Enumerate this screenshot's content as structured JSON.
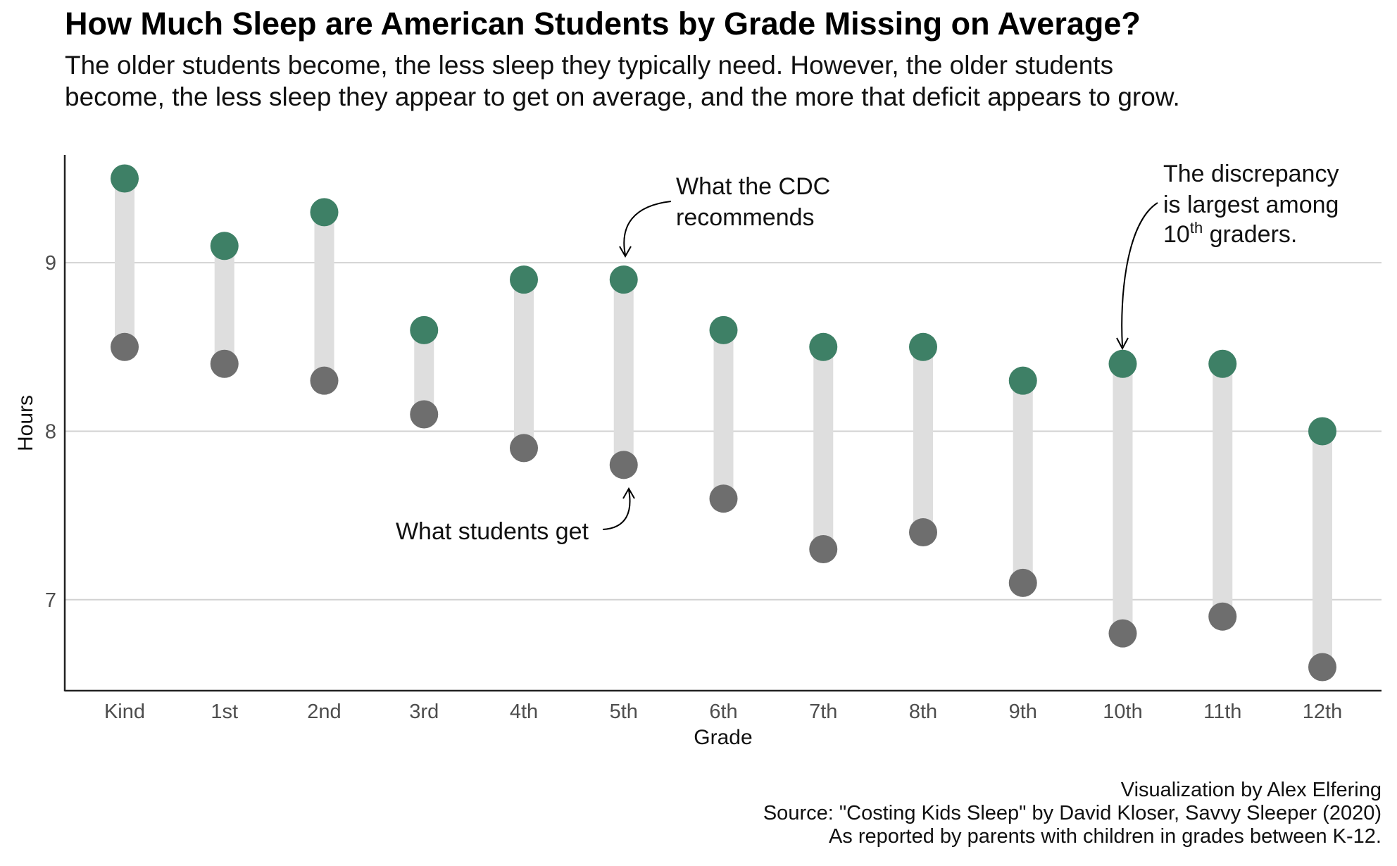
{
  "title": "How Much Sleep are American Students by Grade Missing on Average?",
  "subtitle": [
    "The older students become, the less sleep they typically need. However, the older students",
    "become, the less sleep they appear to get on average, and the more that deficit appears to grow."
  ],
  "caption": [
    "Visualization by Alex Elfering",
    "Source: \"Costing Kids Sleep\" by David Kloser, Savvy Sleeper (2020)",
    "As reported by parents with children in grades between K-12."
  ],
  "chart_data": {
    "type": "dumbbell",
    "xlabel": "Grade",
    "ylabel": "Hours",
    "ylim": [
      6.46,
      9.64
    ],
    "yticks": [
      7,
      8,
      9
    ],
    "grid": "horizontal major",
    "categories": [
      "Kind",
      "1st",
      "2nd",
      "3rd",
      "4th",
      "5th",
      "6th",
      "7th",
      "8th",
      "9th",
      "10th",
      "11th",
      "12th"
    ],
    "series": [
      {
        "values": [
          9.5,
          9.1,
          9.3,
          8.6,
          8.9,
          8.9,
          8.6,
          8.5,
          8.5,
          8.3,
          8.4,
          8.4,
          8.0
        ],
        "color": "#3e8066"
      },
      {
        "values": [
          8.5,
          8.4,
          8.3,
          8.1,
          7.9,
          7.8,
          7.6,
          7.3,
          7.4,
          7.1,
          6.8,
          6.9,
          6.6
        ],
        "color": "#6e6e6e"
      }
    ],
    "segment_color": "#dedede",
    "annotations": [
      {
        "lines": [
          "What the CDC",
          "recommends"
        ],
        "target_category": "5th"
      },
      {
        "lines": [
          "What students get"
        ],
        "target_category": "5th"
      },
      {
        "lines": [
          "The discrepancy",
          "is largest among",
          "10",
          "th",
          " graders."
        ],
        "target_category": "10th"
      }
    ]
  }
}
